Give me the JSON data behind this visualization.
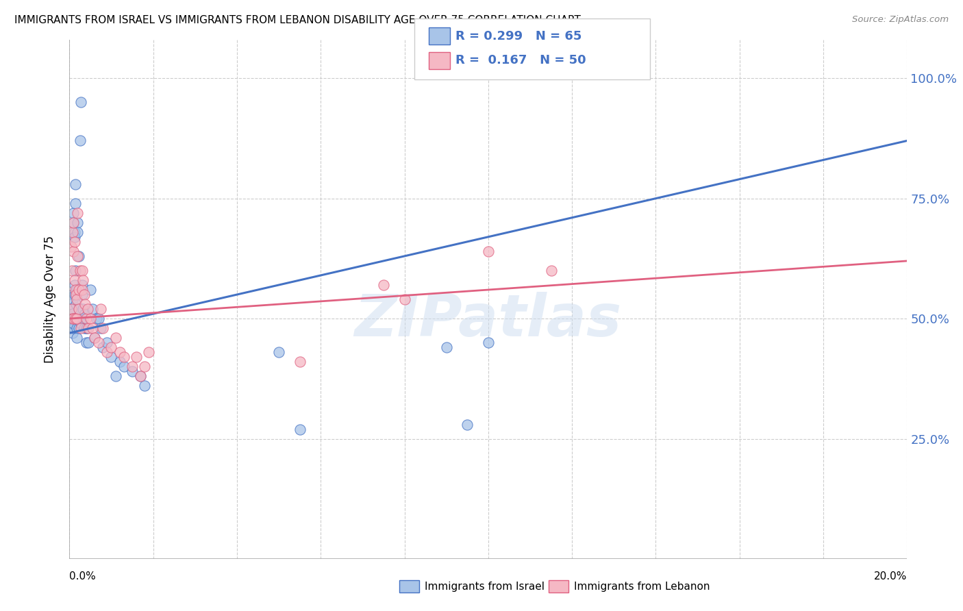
{
  "title": "IMMIGRANTS FROM ISRAEL VS IMMIGRANTS FROM LEBANON DISABILITY AGE OVER 75 CORRELATION CHART",
  "source": "Source: ZipAtlas.com",
  "ylabel": "Disability Age Over 75",
  "ytick_labels": [
    "100.0%",
    "75.0%",
    "50.0%",
    "25.0%"
  ],
  "ytick_values": [
    1.0,
    0.75,
    0.5,
    0.25
  ],
  "xmin": 0.0,
  "xmax": 0.2,
  "ymin": 0.0,
  "ymax": 1.08,
  "israel_color": "#a8c4e8",
  "lebanon_color": "#f5b8c4",
  "israel_line_color": "#4472c4",
  "lebanon_line_color": "#e06080",
  "israel_R": 0.299,
  "israel_N": 65,
  "lebanon_R": 0.167,
  "lebanon_N": 50,
  "watermark": "ZIPatlas",
  "israel_x": [
    0.0003,
    0.0003,
    0.0005,
    0.0005,
    0.0006,
    0.0007,
    0.0007,
    0.0008,
    0.0008,
    0.0009,
    0.001,
    0.001,
    0.001,
    0.0012,
    0.0012,
    0.0013,
    0.0013,
    0.0014,
    0.0014,
    0.0015,
    0.0016,
    0.0016,
    0.0017,
    0.0018,
    0.0018,
    0.002,
    0.002,
    0.002,
    0.0022,
    0.0022,
    0.0023,
    0.0025,
    0.0025,
    0.0027,
    0.0028,
    0.003,
    0.003,
    0.0032,
    0.0033,
    0.0035,
    0.0037,
    0.004,
    0.004,
    0.0042,
    0.0045,
    0.005,
    0.0055,
    0.006,
    0.0065,
    0.007,
    0.0075,
    0.008,
    0.009,
    0.01,
    0.011,
    0.012,
    0.013,
    0.015,
    0.017,
    0.018,
    0.05,
    0.055,
    0.09,
    0.095,
    0.1
  ],
  "israel_y": [
    0.5,
    0.48,
    0.52,
    0.5,
    0.55,
    0.49,
    0.47,
    0.54,
    0.51,
    0.48,
    0.72,
    0.7,
    0.49,
    0.68,
    0.67,
    0.57,
    0.55,
    0.78,
    0.6,
    0.74,
    0.53,
    0.5,
    0.56,
    0.48,
    0.46,
    0.7,
    0.68,
    0.5,
    0.63,
    0.52,
    0.48,
    0.87,
    0.5,
    0.95,
    0.49,
    0.57,
    0.55,
    0.52,
    0.5,
    0.48,
    0.51,
    0.48,
    0.45,
    0.48,
    0.45,
    0.56,
    0.52,
    0.46,
    0.5,
    0.5,
    0.48,
    0.44,
    0.45,
    0.42,
    0.38,
    0.41,
    0.4,
    0.39,
    0.38,
    0.36,
    0.43,
    0.27,
    0.44,
    0.28,
    0.45
  ],
  "lebanon_x": [
    0.0004,
    0.0005,
    0.0006,
    0.0007,
    0.0008,
    0.0009,
    0.001,
    0.001,
    0.0012,
    0.0013,
    0.0014,
    0.0015,
    0.0016,
    0.0017,
    0.0018,
    0.002,
    0.002,
    0.0022,
    0.0023,
    0.0025,
    0.0027,
    0.003,
    0.003,
    0.0032,
    0.0035,
    0.0038,
    0.004,
    0.0043,
    0.0045,
    0.005,
    0.0055,
    0.006,
    0.007,
    0.0075,
    0.008,
    0.009,
    0.01,
    0.011,
    0.012,
    0.013,
    0.015,
    0.016,
    0.017,
    0.018,
    0.019,
    0.055,
    0.075,
    0.08,
    0.1,
    0.115
  ],
  "lebanon_y": [
    0.52,
    0.65,
    0.6,
    0.5,
    0.68,
    0.7,
    0.64,
    0.5,
    0.66,
    0.58,
    0.5,
    0.56,
    0.55,
    0.54,
    0.5,
    0.72,
    0.63,
    0.56,
    0.52,
    0.6,
    0.48,
    0.6,
    0.56,
    0.58,
    0.55,
    0.53,
    0.5,
    0.52,
    0.48,
    0.5,
    0.48,
    0.46,
    0.45,
    0.52,
    0.48,
    0.43,
    0.44,
    0.46,
    0.43,
    0.42,
    0.4,
    0.42,
    0.38,
    0.4,
    0.43,
    0.41,
    0.57,
    0.54,
    0.64,
    0.6
  ]
}
